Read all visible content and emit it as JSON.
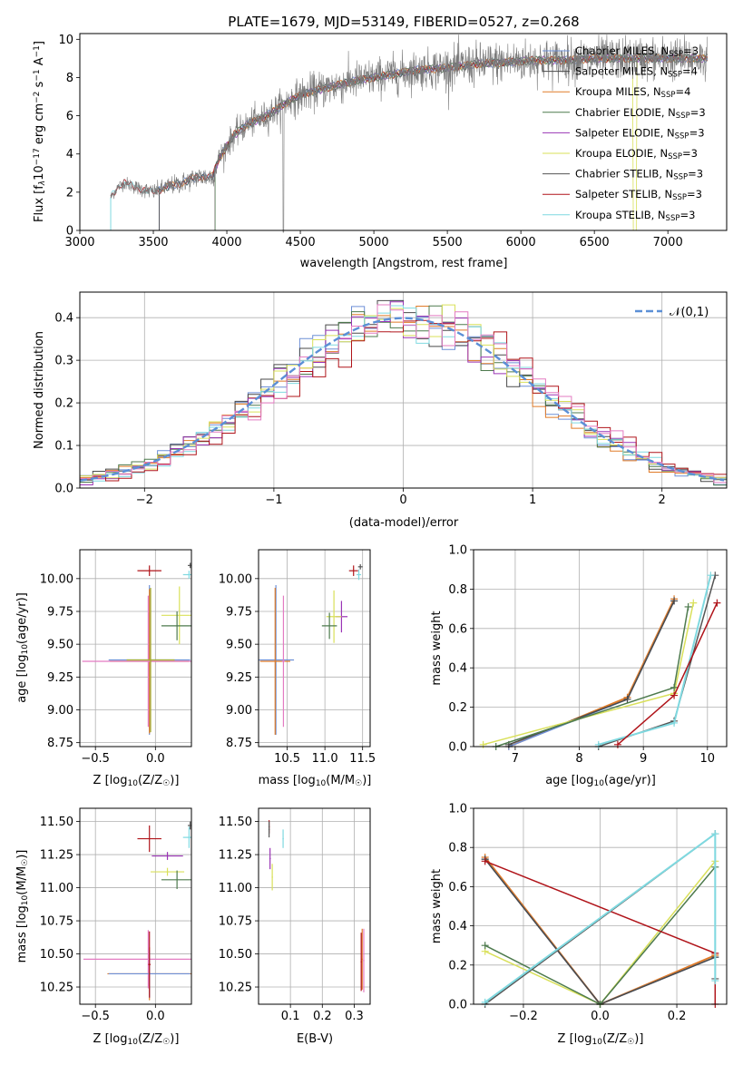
{
  "title": "PLATE=1679, MJD=53149, FIBERID=0527, z=0.268",
  "colors": {
    "chabrier_miles": "#6d8fd6",
    "salpeter_miles": "#4a4a4a",
    "kroupa_miles": "#e07b28",
    "chabrier_elodie": "#4d7a4d",
    "salpeter_elodie": "#9a34b5",
    "kroupa_elodie": "#d9e05a",
    "chabrier_stelib": "#555555",
    "salpeter_stelib": "#b0141a",
    "kroupa_stelib": "#7fd9e0",
    "gauss": "#5b8fd6",
    "pink": "#e37bc2",
    "olive": "#a8b02c",
    "grid": "#b0b0b0"
  },
  "chart_data": [
    {
      "id": "spectrum",
      "type": "line",
      "title": "PLATE=1679, MJD=53149, FIBERID=0527, z=0.268",
      "xlabel": "wavelength [Angstrom, rest frame]",
      "ylabel_main": "Flux [f",
      "ylabel_sub": "λ",
      "ylabel_rest": "10",
      "ylabel_exp": "−17",
      "ylabel_tail": " erg cm",
      "ylabel_exp2": "−2",
      "ylabel_tail2": " s",
      "ylabel_exp3": "−1",
      "ylabel_tail3": " A",
      "ylabel_exp4": "−1",
      "ylabel_end": "]",
      "xlim": [
        3000,
        7400
      ],
      "ylim": [
        0,
        10.3
      ],
      "xticks": [
        "3000",
        "3500",
        "4000",
        "4500",
        "5000",
        "5500",
        "6000",
        "6500",
        "7000"
      ],
      "yticks": [
        "0",
        "2",
        "4",
        "6",
        "8",
        "10"
      ],
      "grid": false,
      "legend_position": "top-right",
      "legend": [
        {
          "key": "chabrier_miles",
          "label": "Chabrier MILES, N",
          "sub": "SSP",
          "tail": "=3"
        },
        {
          "key": "salpeter_miles",
          "label": "Salpeter MILES, N",
          "sub": "SSP",
          "tail": "=4"
        },
        {
          "key": "kroupa_miles",
          "label": "Kroupa MILES, N",
          "sub": "SSP",
          "tail": "=4"
        },
        {
          "key": "chabrier_elodie",
          "label": "Chabrier ELODIE, N",
          "sub": "SSP",
          "tail": "=3"
        },
        {
          "key": "salpeter_elodie",
          "label": "Salpeter ELODIE, N",
          "sub": "SSP",
          "tail": "=3"
        },
        {
          "key": "kroupa_elodie",
          "label": "Kroupa ELODIE, N",
          "sub": "SSP",
          "tail": "=3"
        },
        {
          "key": "chabrier_stelib",
          "label": "Chabrier STELIB, N",
          "sub": "SSP",
          "tail": "=3"
        },
        {
          "key": "salpeter_stelib",
          "label": "Salpeter STELIB, N",
          "sub": "SSP",
          "tail": "=3"
        },
        {
          "key": "kroupa_stelib",
          "label": "Kroupa STELIB, N",
          "sub": "SSP",
          "tail": "=3"
        }
      ],
      "continuum_points": [
        [
          3210,
          1.7
        ],
        [
          3250,
          2.2
        ],
        [
          3300,
          2.5
        ],
        [
          3400,
          2.2
        ],
        [
          3500,
          2.0
        ],
        [
          3600,
          2.3
        ],
        [
          3700,
          2.5
        ],
        [
          3800,
          2.8
        ],
        [
          3900,
          2.8
        ],
        [
          3950,
          3.8
        ],
        [
          4050,
          5.0
        ],
        [
          4150,
          5.6
        ],
        [
          4250,
          5.9
        ],
        [
          4350,
          6.4
        ],
        [
          4450,
          6.9
        ],
        [
          4550,
          7.2
        ],
        [
          4700,
          7.5
        ],
        [
          4850,
          7.8
        ],
        [
          5000,
          8.0
        ],
        [
          5150,
          8.2
        ],
        [
          5300,
          8.4
        ],
        [
          5500,
          8.5
        ],
        [
          5700,
          8.7
        ],
        [
          5900,
          8.8
        ],
        [
          6100,
          8.9
        ],
        [
          6300,
          8.9
        ],
        [
          6500,
          9.0
        ],
        [
          6700,
          9.0
        ],
        [
          6900,
          9.0
        ],
        [
          7100,
          9.0
        ],
        [
          7270,
          9.0
        ]
      ]
    },
    {
      "id": "residuals",
      "type": "step",
      "xlabel": "(data-model)/error",
      "ylabel": "Normed distribution",
      "xlim": [
        -2.5,
        2.5
      ],
      "ylim": [
        0,
        0.46
      ],
      "xticks": [
        "−2",
        "−1",
        "0",
        "1",
        "2"
      ],
      "yticks": [
        "0.0",
        "0.1",
        "0.2",
        "0.3",
        "0.4"
      ],
      "grid": true,
      "legend_position": "top-right",
      "legend_label": "𝒩(0,1)"
    },
    {
      "id": "age_vs_Z",
      "type": "errorbar",
      "xlabel": "Z [log",
      "xlabel_sub": "10",
      "xlabel_tail": "(Z/Z",
      "xlabel_sub2": "☉",
      "xlabel_end": ")]",
      "ylabel": "age  [log",
      "ylabel_sub": "10",
      "ylabel_tail": "(age/yr)]",
      "xlim": [
        -0.63,
        0.3
      ],
      "ylim": [
        8.72,
        10.22
      ],
      "xticks": [
        "−0.5",
        "0.0"
      ],
      "yticks": [
        "8.75",
        "9.00",
        "9.25",
        "9.50",
        "9.75",
        "10.00"
      ],
      "points": [
        {
          "key": "salpeter_stelib",
          "x": -0.05,
          "y": 10.06,
          "xerr": 0.1,
          "yerr": 0.04
        },
        {
          "key": "kroupa_stelib",
          "x": 0.28,
          "y": 10.03,
          "xerr": 0.05,
          "yerr": 0.03
        },
        {
          "key": "chabrier_stelib",
          "x": 0.29,
          "y": 10.1,
          "xerr": 0.02,
          "yerr": 0.02
        },
        {
          "key": "kroupa_elodie",
          "x": 0.2,
          "y": 9.72,
          "xerr": 0.15,
          "yerr": 0.22
        },
        {
          "key": "chabrier_elodie",
          "x": 0.18,
          "y": 9.64,
          "xerr": 0.13,
          "yerr": 0.11
        },
        {
          "key": "chabrier_miles",
          "x": -0.05,
          "y": 9.38,
          "xerr": 0.34,
          "yerr": 0.57
        },
        {
          "key": "kroupa_miles",
          "x": -0.05,
          "y": 9.37,
          "xerr": 0.33,
          "yerr": 0.55
        },
        {
          "key": "pink",
          "x": -0.06,
          "y": 9.37,
          "xerr": 0.55,
          "yerr": 0.5
        },
        {
          "key": "olive",
          "x": -0.04,
          "y": 9.38,
          "xerr": 0.2,
          "yerr": 0.55
        }
      ]
    },
    {
      "id": "age_vs_mass",
      "type": "errorbar",
      "xlabel": "mass [log",
      "xlabel_sub": "10",
      "xlabel_tail": "(M/M",
      "xlabel_sub2": "☉",
      "xlabel_end": ")]",
      "xlim": [
        10.12,
        11.6
      ],
      "ylim": [
        8.72,
        10.22
      ],
      "xticks": [
        "10.5",
        "11.0",
        "11.5"
      ],
      "yticks": [
        "8.75",
        "9.00",
        "9.25",
        "9.50",
        "9.75",
        "10.00"
      ],
      "points": [
        {
          "key": "salpeter_stelib",
          "x": 11.38,
          "y": 10.06,
          "xerr": 0.06,
          "yerr": 0.04
        },
        {
          "key": "chabrier_stelib",
          "x": 11.47,
          "y": 10.09,
          "xerr": 0.03,
          "yerr": 0.02
        },
        {
          "key": "kroupa_stelib",
          "x": 11.45,
          "y": 10.03,
          "xerr": 0.03,
          "yerr": 0.04
        },
        {
          "key": "salpeter_elodie",
          "x": 11.22,
          "y": 9.71,
          "xerr": 0.08,
          "yerr": 0.12
        },
        {
          "key": "kroupa_elodie",
          "x": 11.12,
          "y": 9.71,
          "xerr": 0.1,
          "yerr": 0.2
        },
        {
          "key": "chabrier_elodie",
          "x": 11.06,
          "y": 9.64,
          "xerr": 0.1,
          "yerr": 0.1
        },
        {
          "key": "chabrier_miles",
          "x": 10.35,
          "y": 9.38,
          "xerr": 0.24,
          "yerr": 0.57
        },
        {
          "key": "kroupa_miles",
          "x": 10.34,
          "y": 9.37,
          "xerr": 0.2,
          "yerr": 0.56
        },
        {
          "key": "pink",
          "x": 10.45,
          "y": 9.37,
          "xerr": 0.02,
          "yerr": 0.5
        }
      ]
    },
    {
      "id": "massweight_vs_age",
      "type": "line",
      "xlabel": "age  [log",
      "xlabel_sub": "10",
      "xlabel_tail": "(age/yr)]",
      "ylabel": "mass weight",
      "xlim": [
        6.35,
        10.3
      ],
      "ylim": [
        0,
        1
      ],
      "xticks": [
        "7",
        "8",
        "9",
        "10"
      ],
      "yticks": [
        "0.0",
        "0.2",
        "0.4",
        "0.6",
        "0.8",
        "1.0"
      ],
      "grid": true,
      "series": [
        {
          "key": "kroupa_miles",
          "x": [
            6.9,
            8.75,
            9.48
          ],
          "y": [
            0.0,
            0.25,
            0.75
          ]
        },
        {
          "key": "chabrier_miles",
          "x": [
            6.9,
            8.75,
            9.48
          ],
          "y": [
            0.0,
            0.24,
            0.74
          ]
        },
        {
          "key": "salpeter_miles",
          "x": [
            6.9,
            8.75,
            9.48
          ],
          "y": [
            0.01,
            0.24,
            0.74
          ]
        },
        {
          "key": "kroupa_elodie",
          "x": [
            6.5,
            9.48,
            9.78
          ],
          "y": [
            0.01,
            0.27,
            0.73
          ]
        },
        {
          "key": "chabrier_elodie",
          "x": [
            6.7,
            9.48,
            9.7
          ],
          "y": [
            0.0,
            0.3,
            0.71
          ]
        },
        {
          "key": "chabrier_stelib",
          "x": [
            8.3,
            9.48,
            10.12
          ],
          "y": [
            0.0,
            0.13,
            0.87
          ]
        },
        {
          "key": "kroupa_stelib",
          "x": [
            8.3,
            9.48,
            10.05
          ],
          "y": [
            0.01,
            0.12,
            0.87
          ]
        },
        {
          "key": "salpeter_stelib",
          "x": [
            8.6,
            9.48,
            10.15
          ],
          "y": [
            0.01,
            0.26,
            0.73
          ]
        }
      ]
    },
    {
      "id": "mass_vs_Z",
      "type": "errorbar",
      "xlabel": "Z [log",
      "xlabel_sub": "10",
      "xlabel_tail": "(Z/Z",
      "xlabel_sub2": "☉",
      "xlabel_end": ")]",
      "ylabel": "mass [log",
      "ylabel_sub": "10",
      "ylabel_tail": "(M/M",
      "ylabel_sub2": "☉",
      "ylabel_end": ")]",
      "xlim": [
        -0.63,
        0.3
      ],
      "ylim": [
        10.12,
        11.6
      ],
      "xticks": [
        "−0.5",
        "0.0"
      ],
      "yticks": [
        "10.25",
        "10.50",
        "10.75",
        "11.00",
        "11.25",
        "11.50"
      ],
      "points": [
        {
          "key": "chabrier_stelib",
          "x": 0.29,
          "y": 11.47,
          "xerr": 0.02,
          "yerr": 0.03
        },
        {
          "key": "kroupa_stelib",
          "x": 0.28,
          "y": 11.38,
          "xerr": 0.05,
          "yerr": 0.08
        },
        {
          "key": "salpeter_stelib",
          "x": -0.05,
          "y": 11.37,
          "xerr": 0.1,
          "yerr": 0.1
        },
        {
          "key": "salpeter_elodie",
          "x": 0.1,
          "y": 11.24,
          "xerr": 0.13,
          "yerr": 0.03
        },
        {
          "key": "kroupa_elodie",
          "x": 0.1,
          "y": 11.12,
          "xerr": 0.14,
          "yerr": 0.03
        },
        {
          "key": "chabrier_elodie",
          "x": 0.18,
          "y": 11.06,
          "xerr": 0.13,
          "yerr": 0.07
        },
        {
          "key": "pink",
          "x": -0.06,
          "y": 10.46,
          "xerr": 0.54,
          "yerr": 0.22
        },
        {
          "key": "kroupa_miles",
          "x": -0.05,
          "y": 10.35,
          "xerr": 0.35,
          "yerr": 0.2
        },
        {
          "key": "chabrier_miles",
          "x": -0.05,
          "y": 10.35,
          "xerr": 0.34,
          "yerr": 0.18
        },
        {
          "key": "salpeter_stelib",
          "x": -0.05,
          "y": 10.42,
          "xerr": 0.01,
          "yerr": 0.25
        }
      ]
    },
    {
      "id": "mass_vs_EBV",
      "type": "errorbar",
      "xlabel": "E(B-V)",
      "xlim": [
        0.0,
        0.35
      ],
      "ylim": [
        10.12,
        11.6
      ],
      "xticks": [
        "0.1",
        "0.2",
        "0.3"
      ],
      "yticks": [
        "10.25",
        "10.50",
        "10.75",
        "11.00",
        "11.25",
        "11.50"
      ],
      "points": [
        {
          "key": "salpeter_stelib",
          "x": 0.033,
          "y": 11.46,
          "xerr": 0.002,
          "yerr": 0.05
        },
        {
          "key": "chabrier_stelib",
          "x": 0.033,
          "y": 11.44,
          "xerr": 0.002,
          "yerr": 0.06
        },
        {
          "key": "salpeter_elodie",
          "x": 0.036,
          "y": 11.22,
          "xerr": 0.002,
          "yerr": 0.08
        },
        {
          "key": "kroupa_elodie",
          "x": 0.043,
          "y": 11.08,
          "xerr": 0.002,
          "yerr": 0.1
        },
        {
          "key": "kroupa_stelib",
          "x": 0.077,
          "y": 11.37,
          "xerr": 0.002,
          "yerr": 0.07
        },
        {
          "key": "kroupa_miles",
          "x": 0.325,
          "y": 10.46,
          "xerr": 0.002,
          "yerr": 0.23
        },
        {
          "key": "pink",
          "x": 0.33,
          "y": 10.45,
          "xerr": 0.002,
          "yerr": 0.24
        },
        {
          "key": "salpeter_stelib",
          "x": 0.322,
          "y": 10.44,
          "xerr": 0.002,
          "yerr": 0.22
        }
      ]
    },
    {
      "id": "massweight_vs_Z",
      "type": "line",
      "xlabel": "Z [log",
      "xlabel_sub": "10",
      "xlabel_tail": "(Z/Z",
      "xlabel_sub2": "☉",
      "xlabel_end": ")]",
      "ylabel": "mass weight",
      "xlim": [
        -0.33,
        0.33
      ],
      "ylim": [
        0,
        1
      ],
      "xticks": [
        "−0.2",
        "0.0",
        "0.2"
      ],
      "yticks": [
        "0.0",
        "0.2",
        "0.4",
        "0.6",
        "0.8",
        "1.0"
      ],
      "grid": true,
      "series": [
        {
          "key": "kroupa_miles",
          "x": [
            -0.3,
            0.0,
            0.3
          ],
          "y": [
            0.75,
            0.0,
            0.25
          ]
        },
        {
          "key": "chabrier_miles",
          "x": [
            -0.3,
            0.0,
            0.3
          ],
          "y": [
            0.74,
            0.0,
            0.24
          ]
        },
        {
          "key": "salpeter_miles",
          "x": [
            -0.3,
            0.0,
            0.3
          ],
          "y": [
            0.74,
            0.0,
            0.24
          ]
        },
        {
          "key": "kroupa_elodie",
          "x": [
            -0.3,
            0.0,
            0.3
          ],
          "y": [
            0.27,
            0.0,
            0.73
          ]
        },
        {
          "key": "chabrier_elodie",
          "x": [
            -0.3,
            0.0,
            0.3
          ],
          "y": [
            0.3,
            0.0,
            0.7
          ]
        },
        {
          "key": "salpeter_stelib",
          "x": [
            -0.3,
            0.3,
            0.3
          ],
          "y": [
            0.73,
            0.26,
            0.0
          ]
        },
        {
          "key": "chabrier_stelib",
          "x": [
            -0.3,
            0.3,
            0.3
          ],
          "y": [
            0.0,
            0.87,
            0.13
          ]
        },
        {
          "key": "kroupa_stelib",
          "x": [
            -0.3,
            0.3,
            0.3
          ],
          "y": [
            0.01,
            0.87,
            0.12
          ]
        }
      ]
    }
  ]
}
